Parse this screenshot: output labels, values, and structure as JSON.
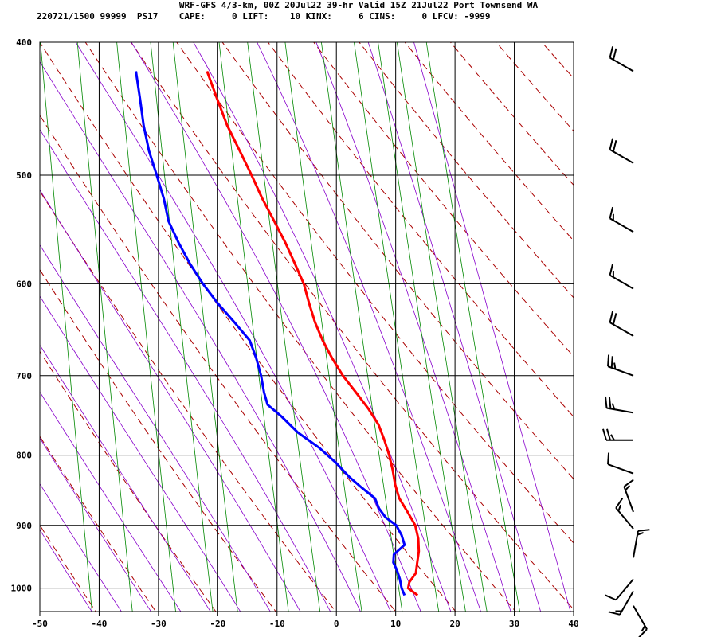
{
  "header": {
    "title": "WRF-GFS 4/3-km, 00Z 20Jul22 39-hr Valid 15Z 21Jul22 Port Townsend WA",
    "stats": "220721/1500 99999  PS17    CAPE:     0 LIFT:    10 KINX:     6 CINS:     0 LFCV: -9999"
  },
  "colors": {
    "temperature": "#ff0000",
    "dewpoint": "#0000ff",
    "dry_adiabat": "#aa0000",
    "moist_adiabat": "#8800cc",
    "mixing_ratio": "#008800",
    "isotherm": "#000000"
  },
  "chart_data": {
    "type": "line",
    "x_axis": {
      "min": -50,
      "max": 40,
      "ticks": [
        -50,
        -40,
        -30,
        -20,
        -10,
        0,
        10,
        20,
        30,
        40
      ]
    },
    "y_axis": {
      "scale": "log-pressure",
      "top": 400,
      "bottom": 1040,
      "ticks": [
        400,
        500,
        600,
        700,
        800,
        900,
        1000
      ]
    },
    "grid": true,
    "series": [
      {
        "key": "temperature",
        "points": [
          [
            1012,
            13.7
          ],
          [
            1000,
            12.1
          ],
          [
            990,
            12.3
          ],
          [
            975,
            13.4
          ],
          [
            960,
            13.6
          ],
          [
            940,
            13.9
          ],
          [
            920,
            13.8
          ],
          [
            900,
            13.3
          ],
          [
            880,
            12.0
          ],
          [
            860,
            10.6
          ],
          [
            840,
            9.9
          ],
          [
            820,
            9.5
          ],
          [
            800,
            8.9
          ],
          [
            780,
            8.1
          ],
          [
            760,
            7.1
          ],
          [
            740,
            5.4
          ],
          [
            720,
            3.3
          ],
          [
            700,
            1.1
          ],
          [
            680,
            -0.7
          ],
          [
            660,
            -2.3
          ],
          [
            640,
            -3.6
          ],
          [
            620,
            -4.6
          ],
          [
            600,
            -5.5
          ],
          [
            580,
            -7.0
          ],
          [
            560,
            -8.6
          ],
          [
            540,
            -10.5
          ],
          [
            520,
            -12.5
          ],
          [
            500,
            -14.3
          ],
          [
            480,
            -16.3
          ],
          [
            460,
            -18.4
          ],
          [
            440,
            -20.1
          ],
          [
            420,
            -21.8
          ]
        ]
      },
      {
        "key": "dewpoint",
        "points": [
          [
            1012,
            11.5
          ],
          [
            1000,
            11.0
          ],
          [
            985,
            10.7
          ],
          [
            970,
            10.2
          ],
          [
            958,
            9.6
          ],
          [
            945,
            9.7
          ],
          [
            930,
            11.5
          ],
          [
            915,
            11.0
          ],
          [
            900,
            10.1
          ],
          [
            888,
            8.3
          ],
          [
            875,
            7.2
          ],
          [
            860,
            6.5
          ],
          [
            845,
            4.3
          ],
          [
            830,
            2.2
          ],
          [
            810,
            -0.1
          ],
          [
            790,
            -2.9
          ],
          [
            770,
            -6.5
          ],
          [
            750,
            -9.2
          ],
          [
            735,
            -11.6
          ],
          [
            720,
            -12.2
          ],
          [
            700,
            -12.7
          ],
          [
            680,
            -13.5
          ],
          [
            660,
            -14.6
          ],
          [
            640,
            -17.2
          ],
          [
            620,
            -20.0
          ],
          [
            600,
            -22.5
          ],
          [
            580,
            -24.7
          ],
          [
            560,
            -26.6
          ],
          [
            540,
            -28.3
          ],
          [
            520,
            -29.1
          ],
          [
            500,
            -30.3
          ],
          [
            480,
            -31.6
          ],
          [
            460,
            -32.5
          ],
          [
            440,
            -33.1
          ],
          [
            420,
            -33.8
          ]
        ]
      }
    ],
    "wind_barbs": [
      {
        "pressure": 420,
        "direction": 300,
        "speed_kt": 20
      },
      {
        "pressure": 490,
        "direction": 300,
        "speed_kt": 20
      },
      {
        "pressure": 550,
        "direction": 300,
        "speed_kt": 15
      },
      {
        "pressure": 605,
        "direction": 300,
        "speed_kt": 15
      },
      {
        "pressure": 655,
        "direction": 300,
        "speed_kt": 20
      },
      {
        "pressure": 700,
        "direction": 290,
        "speed_kt": 25
      },
      {
        "pressure": 745,
        "direction": 280,
        "speed_kt": 25
      },
      {
        "pressure": 780,
        "direction": 270,
        "speed_kt": 25
      },
      {
        "pressure": 825,
        "direction": 290,
        "speed_kt": 10
      },
      {
        "pressure": 880,
        "direction": 340,
        "speed_kt": 15
      },
      {
        "pressure": 905,
        "direction": 320,
        "speed_kt": 15
      },
      {
        "pressure": 950,
        "direction": 10,
        "speed_kt": 15
      },
      {
        "pressure": 985,
        "direction": 220,
        "speed_kt": 10
      },
      {
        "pressure": 1005,
        "direction": 210,
        "speed_kt": 15
      },
      {
        "pressure": 1030,
        "direction": 150,
        "speed_kt": 15
      }
    ]
  }
}
